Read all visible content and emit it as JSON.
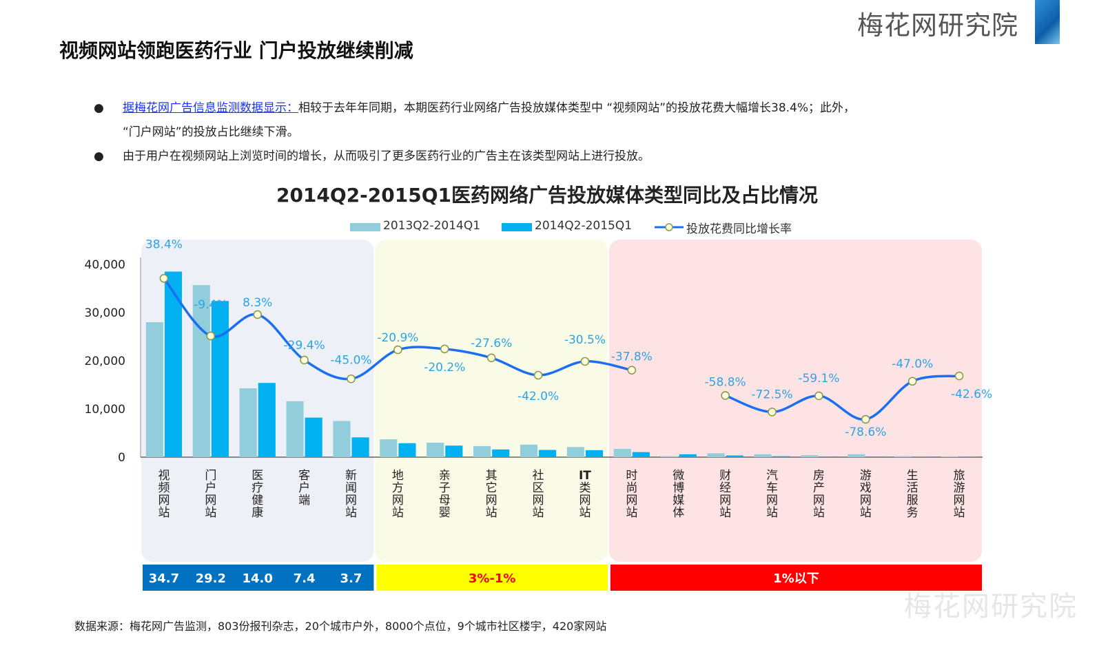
{
  "header": {
    "brand": "梅花网研究院",
    "title": "视频网站领跑医药行业  门户投放继续削减"
  },
  "bullets": [
    {
      "link": "据梅花网广告信息监测数据显示：",
      "text": "相较于去年年同期，本期医药行业网络广告投放媒体类型中 “视频网站”的投放花费大幅增长38.4%；此外，",
      "text2": "“门户网站”的投放占比继续下滑。"
    },
    {
      "text": "由于用户在视频网站上浏览时间的增长，从而吸引了更多医药行业的广告主在该类型网站上进行投放。"
    }
  ],
  "source": "数据来源：梅花网广告监测，803份报刊杂志，20个城市户外，8000个点位，9个城市社区楼宇，420家网站",
  "watermark": "梅花网研究院",
  "chart_data": {
    "type": "bar",
    "title": "2014Q2-2015Q1医药网络广告投放媒体类型同比及占比情况",
    "categories": [
      "视频网站",
      "门户网站",
      "医疗健康",
      "客户端",
      "新闻网站",
      "地方网站",
      "亲子母婴",
      "其它网站",
      "社区网站",
      "IT类网站",
      "时尚网站",
      "微博媒体",
      "财经网站",
      "汽车网站",
      "房产网站",
      "游戏网站",
      "生活服务",
      "旅游网站"
    ],
    "series": [
      {
        "name": "2013Q2-2014Q1",
        "kind": "bar",
        "color": "#92cddc",
        "values": [
          28000,
          35700,
          14300,
          11600,
          7500,
          3700,
          3000,
          2300,
          2600,
          2100,
          1700,
          200,
          800,
          600,
          400,
          600,
          200,
          100
        ]
      },
      {
        "name": "2014Q2-2015Q1",
        "kind": "bar",
        "color": "#00b0f0",
        "values": [
          38500,
          32400,
          15400,
          8200,
          4100,
          2900,
          2400,
          1600,
          1500,
          1450,
          1050,
          600,
          350,
          200,
          150,
          150,
          100,
          50
        ]
      },
      {
        "name": "投放花费同比增长率",
        "kind": "line",
        "color": "#1a6ef2",
        "axis": "right",
        "values": [
          38.4,
          -9.4,
          8.3,
          -29.4,
          -45.0,
          -20.9,
          -20.2,
          -27.6,
          -42.0,
          -30.5,
          -37.8,
          null,
          -58.8,
          -72.5,
          -59.1,
          -78.6,
          -47.0,
          -42.6
        ],
        "labels": [
          "38.4%",
          "-9.4%",
          "8.3%",
          "-29.4%",
          "-45.0%",
          "-20.9%",
          "-20.2%",
          "-27.6%",
          "-42.0%",
          "-30.5%",
          "-37.8%",
          "",
          "-58.8%",
          "-72.5%",
          "-59.1%",
          "-78.6%",
          "-47.0%",
          "-42.6%"
        ]
      }
    ],
    "ylim": [
      0,
      40000
    ],
    "yticks": [
      "40,000",
      "30,000",
      "20,000",
      "10,000",
      "0"
    ],
    "y2lim": [
      -110,
      50
    ],
    "groups": [
      {
        "from": 0,
        "to": 4,
        "bg": "#eef0f8",
        "share_color": "#0070c0",
        "share_text_color": "#ffffff",
        "shares": [
          "34.7",
          "29.2",
          "14.0",
          "7.4",
          "3.7"
        ]
      },
      {
        "from": 5,
        "to": 9,
        "bg": "#fafbe6",
        "share_color": "#ffff00",
        "share_text_color": "#ff0000",
        "share_label": "3%-1%"
      },
      {
        "from": 10,
        "to": 17,
        "bg": "#fde3e3",
        "share_color": "#ff0000",
        "share_text_color": "#ffffff",
        "share_label": "1%以下"
      }
    ]
  }
}
